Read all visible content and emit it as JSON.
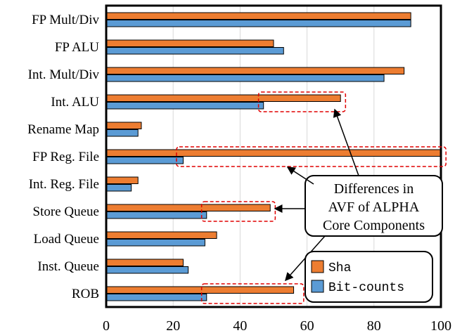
{
  "chart_data": {
    "type": "bar",
    "orientation": "horizontal",
    "categories": [
      "FP Mult/Div",
      "FP ALU",
      "Int. Mult/Div",
      "Int. ALU",
      "Rename Map",
      "FP Reg. File",
      "Int. Reg. File",
      "Store Queue",
      "Load Queue",
      "Inst. Queue",
      "ROB"
    ],
    "series": [
      {
        "name": "Sha",
        "color": "#ED7D31",
        "values": [
          91,
          50,
          89,
          70,
          10.5,
          100,
          9.5,
          49,
          33,
          23,
          56
        ]
      },
      {
        "name": "Bit-counts",
        "color": "#5B9BD5",
        "values": [
          91,
          53,
          83,
          47,
          9.5,
          23,
          7.5,
          30,
          29.5,
          24.5,
          30
        ]
      }
    ],
    "xlim": [
      0,
      100
    ],
    "xticks": [
      "0",
      "20",
      "40",
      "60",
      "80",
      "100"
    ],
    "grid": "vertical",
    "legend_position": "bottom-right",
    "annotation": {
      "lines": [
        "Differences in",
        "AVF of ALPHA",
        "Core Components"
      ]
    },
    "highlight_boxes": [
      {
        "category": "Int. ALU",
        "x_from": 45.5,
        "x_to": 71.5
      },
      {
        "category": "FP Reg. File",
        "x_from": 21,
        "x_to": 101.5
      },
      {
        "category": "Store Queue",
        "x_from": 28.5,
        "x_to": 50.5
      },
      {
        "category": "ROB",
        "x_from": 28.5,
        "x_to": 59
      }
    ]
  }
}
